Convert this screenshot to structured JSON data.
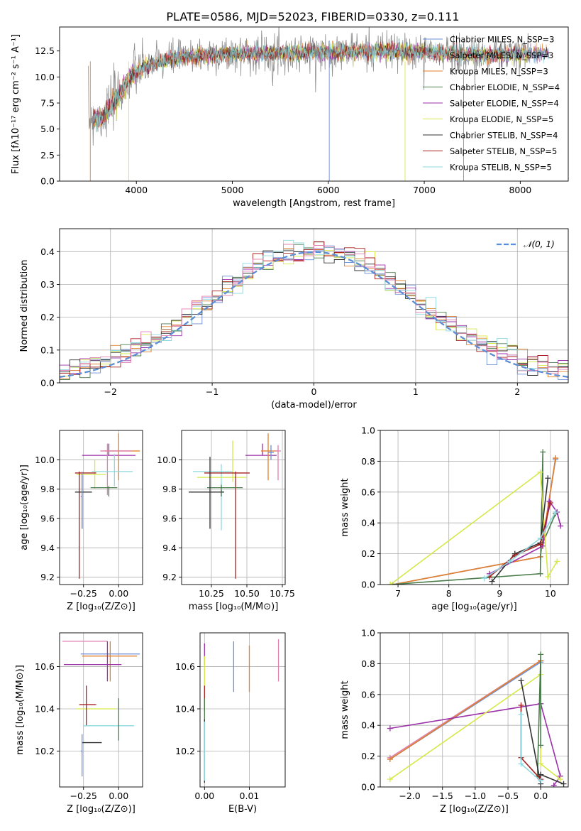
{
  "figure": {
    "title": "PLATE=0586, MJD=52023, FIBERID=0330, z=0.111"
  },
  "chart_data": [
    {
      "id": "spectrum",
      "type": "line",
      "xlabel": "wavelength [Angstrom, rest frame]",
      "ylabel": "Flux [fλ10⁻¹⁷ erg cm⁻² s⁻¹ A⁻¹]",
      "xlim": [
        3200,
        8500
      ],
      "ylim": [
        0,
        14.8
      ],
      "xticks": [
        4000,
        5000,
        6000,
        7000,
        8000
      ],
      "yticks": [
        0.0,
        2.5,
        5.0,
        7.5,
        10.0,
        12.5
      ],
      "grid": false,
      "legend_position": "right",
      "data_range": [
        3500,
        8300
      ],
      "continuum": {
        "x": [
          3500,
          3650,
          3800,
          3950,
          4100,
          4300,
          4600,
          5000,
          5500,
          6000,
          6500,
          7000,
          7500,
          8000,
          8300
        ],
        "y": [
          6.0,
          6.2,
          8.0,
          10.2,
          11.0,
          11.6,
          12.0,
          12.2,
          12.3,
          12.4,
          12.5,
          12.4,
          12.1,
          12.2,
          12.2
        ]
      },
      "series": [
        {
          "name": "Chabrier MILES, N_SSP=3",
          "color": "#6f8fd8"
        },
        {
          "name": "Salpeter MILES, N_SSP=3",
          "color": "#d98a8a"
        },
        {
          "name": "Kroupa MILES, N_SSP=3",
          "color": "#e0822f"
        },
        {
          "name": "Chabrier ELODIE, N_SSP=4",
          "color": "#4c7d4c"
        },
        {
          "name": "Salpeter ELODIE, N_SSP=4",
          "color": "#9b30a8"
        },
        {
          "name": "Kroupa ELODIE, N_SSP=5",
          "color": "#d6e84a"
        },
        {
          "name": "Chabrier STELIB, N_SSP=4",
          "color": "#333333"
        },
        {
          "name": "Salpeter STELIB, N_SSP=5",
          "color": "#a82020"
        },
        {
          "name": "Kroupa STELIB, N_SSP=5",
          "color": "#8fd8e0"
        }
      ]
    },
    {
      "id": "residuals",
      "type": "histogram",
      "xlabel": "(data-model)/error",
      "ylabel": "Normed distribution",
      "xlim": [
        -2.5,
        2.5
      ],
      "ylim": [
        0,
        0.47
      ],
      "xticks": [
        -2,
        -1,
        0,
        1,
        2
      ],
      "yticks": [
        0.0,
        0.1,
        0.2,
        0.3,
        0.4
      ],
      "grid": true,
      "legend_position": "top-right",
      "legend": "𝒩(0, 1)",
      "bin_width": 0.1,
      "overlay": {
        "type": "gaussian",
        "mean": 0,
        "sigma": 1,
        "color": "#5b8ed6"
      },
      "series_colors": [
        "#6f8fd8",
        "#e0822f",
        "#4c7d4c",
        "#9b30a8",
        "#d6e84a",
        "#333333",
        "#a82020",
        "#8fd8e0",
        "#e07fb0"
      ]
    },
    {
      "id": "age_vs_z",
      "type": "errorbar",
      "xlabel": "Z [log₁₀(Z/Z⊙)]",
      "ylabel": "age  [log₁₀(age/yr)]",
      "xlim": [
        -0.42,
        0.17
      ],
      "ylim": [
        9.15,
        10.2
      ],
      "xticks": [
        -0.25,
        0.0
      ],
      "xtick_labels": [
        "−0.25",
        "0.00"
      ],
      "yticks": [
        9.2,
        9.4,
        9.6,
        9.8,
        10.0
      ],
      "grid": true,
      "points": [
        {
          "x": -0.07,
          "xerr": [
            0.19,
            0.19
          ],
          "y": 10.03,
          "yerr": [
            0.0,
            0.08
          ],
          "color": "#9b30a8"
        },
        {
          "x": 0.0,
          "xerr": [
            0.1,
            0.15
          ],
          "y": 10.06,
          "yerr": [
            0.2,
            0.12
          ],
          "color": "#e0822f"
        },
        {
          "x": -0.08,
          "xerr": [
            0.05,
            0.17
          ],
          "y": 10.06,
          "yerr": [
            0.3,
            0.05
          ],
          "color": "#e07fb0"
        },
        {
          "x": -0.03,
          "xerr": [
            0.16,
            0.13
          ],
          "y": 9.92,
          "yerr": [
            0.1,
            0.12
          ],
          "color": "#8fd8e0"
        },
        {
          "x": -0.17,
          "xerr": [
            0.13,
            0.08
          ],
          "y": 9.9,
          "yerr": [
            0.1,
            0.1
          ],
          "color": "#d6e84a"
        },
        {
          "x": -0.28,
          "xerr": [
            0.03,
            0.12
          ],
          "y": 9.91,
          "yerr": [
            0.72,
            0.01
          ],
          "color": "#a82020"
        },
        {
          "x": -0.07,
          "xerr": [
            0.13,
            0.06
          ],
          "y": 9.81,
          "yerr": [
            0.06,
            0.01
          ],
          "color": "#4c7d4c"
        },
        {
          "x": -0.26,
          "xerr": [
            0.05,
            0.07
          ],
          "y": 9.78,
          "yerr": [
            0.25,
            0.12
          ],
          "color": "#333333"
        },
        {
          "x": -0.26,
          "xerr": [
            0.01,
            0.0
          ],
          "y": 9.75,
          "yerr": [
            0.22,
            0.17
          ],
          "color": "#6f8fd8"
        }
      ]
    },
    {
      "id": "age_vs_mass",
      "type": "errorbar",
      "xlabel": "mass [log₁₀(M/M⊙)]",
      "ylabel": "",
      "xlim": [
        10.04,
        10.77
      ],
      "ylim": [
        9.15,
        10.2
      ],
      "xticks": [
        10.25,
        10.5,
        10.75
      ],
      "yticks": [
        9.2,
        9.4,
        9.6,
        9.8,
        10.0
      ],
      "grid": true,
      "points": [
        {
          "x": 10.61,
          "xerr": [
            0.12,
            0.1
          ],
          "y": 10.03,
          "yerr": [
            0.0,
            0.08
          ],
          "color": "#9b30a8"
        },
        {
          "x": 10.65,
          "xerr": [
            0.05,
            0.07
          ],
          "y": 10.06,
          "yerr": [
            0.2,
            0.12
          ],
          "color": "#e0822f"
        },
        {
          "x": 10.72,
          "xerr": [
            0.02,
            0.02
          ],
          "y": 10.06,
          "yerr": [
            0.2,
            0.04
          ],
          "color": "#e07fb0"
        },
        {
          "x": 10.32,
          "xerr": [
            0.2,
            0.08
          ],
          "y": 9.92,
          "yerr": [
            0.4,
            0.05
          ],
          "color": "#8fd8e0"
        },
        {
          "x": 10.4,
          "xerr": [
            0.25,
            0.1
          ],
          "y": 9.88,
          "yerr": [
            0.03,
            0.25
          ],
          "color": "#d6e84a"
        },
        {
          "x": 10.42,
          "xerr": [
            0.22,
            0.1
          ],
          "y": 9.91,
          "yerr": [
            0.72,
            0.01
          ],
          "color": "#a82020"
        },
        {
          "x": 10.32,
          "xerr": [
            0.1,
            0.15
          ],
          "y": 9.81,
          "yerr": [
            0.06,
            0.02
          ],
          "color": "#4c7d4c"
        },
        {
          "x": 10.24,
          "xerr": [
            0.15,
            0.1
          ],
          "y": 9.78,
          "yerr": [
            0.25,
            0.24
          ],
          "color": "#333333"
        },
        {
          "x": 10.67,
          "xerr": [
            0.02,
            0.02
          ],
          "y": 10.05,
          "yerr": [
            0.05,
            0.05
          ],
          "color": "#6f8fd8"
        }
      ]
    },
    {
      "id": "massweight_vs_age",
      "type": "line",
      "xlabel": "age  [log₁₀(age/yr)]",
      "ylabel": "mass weight",
      "xlim": [
        6.65,
        10.35
      ],
      "ylim": [
        0.0,
        1.0
      ],
      "xticks": [
        7,
        8,
        9,
        10
      ],
      "yticks": [
        0.0,
        0.2,
        0.4,
        0.6,
        0.8,
        1.0
      ],
      "grid": true,
      "series": [
        {
          "color": "#6f8fd8",
          "x": [
            6.9,
            9.8,
            10.1
          ],
          "y": [
            0.0,
            0.18,
            0.81
          ]
        },
        {
          "color": "#d98a8a",
          "x": [
            6.9,
            9.8,
            10.1
          ],
          "y": [
            0.0,
            0.18,
            0.82
          ]
        },
        {
          "color": "#e0822f",
          "x": [
            6.9,
            9.8,
            10.1
          ],
          "y": [
            0.0,
            0.18,
            0.82
          ]
        },
        {
          "color": "#4c7d4c",
          "x": [
            6.85,
            9.8,
            9.85,
            9.85,
            10.1
          ],
          "y": [
            0.0,
            0.07,
            0.86,
            0.27,
            0.46
          ]
        },
        {
          "color": "#9b30a8",
          "x": [
            8.8,
            9.85,
            9.98,
            10.13,
            10.2
          ],
          "y": [
            0.07,
            0.25,
            0.54,
            0.47,
            0.38
          ]
        },
        {
          "color": "#d6e84a",
          "x": [
            6.85,
            9.8,
            9.95,
            10.13
          ],
          "y": [
            0.0,
            0.73,
            0.05,
            0.15
          ]
        },
        {
          "color": "#333333",
          "x": [
            8.85,
            9.3,
            9.8,
            9.95
          ],
          "y": [
            0.02,
            0.2,
            0.27,
            0.69
          ]
        },
        {
          "color": "#a82020",
          "x": [
            8.8,
            9.3,
            9.8,
            10.0
          ],
          "y": [
            0.05,
            0.19,
            0.26,
            0.53
          ]
        },
        {
          "color": "#8fd8e0",
          "x": [
            8.7,
            9.2,
            9.8,
            10.1
          ],
          "y": [
            0.04,
            0.15,
            0.3,
            0.47
          ]
        }
      ]
    },
    {
      "id": "mass_vs_z",
      "type": "errorbar",
      "xlabel": "Z [log₁₀(Z/Z⊙)]",
      "ylabel": "mass [log₁₀(M/M⊙)]",
      "xlim": [
        -0.42,
        0.17
      ],
      "ylim": [
        10.03,
        10.76
      ],
      "xticks": [
        -0.25,
        0.0
      ],
      "xtick_labels": [
        "−0.25",
        "0.00"
      ],
      "yticks": [
        10.2,
        10.4,
        10.6
      ],
      "grid": true,
      "points": [
        {
          "x": -0.08,
          "xerr": [
            0.32,
            0.0
          ],
          "y": 10.72,
          "yerr": [
            0.0,
            0.0
          ],
          "color": "#e07fb0"
        },
        {
          "x": -0.07,
          "xerr": [
            0.2,
            0.22
          ],
          "y": 10.66,
          "yerr": [
            0.0,
            0.0
          ],
          "color": "#6f8fd8"
        },
        {
          "x": -0.06,
          "xerr": [
            0.2,
            0.19
          ],
          "y": 10.65,
          "yerr": [
            0.12,
            0.07
          ],
          "color": "#e0822f"
        },
        {
          "x": -0.08,
          "xerr": [
            0.31,
            0.1
          ],
          "y": 10.61,
          "yerr": [
            0.08,
            0.11
          ],
          "color": "#9b30a8"
        },
        {
          "x": -0.22,
          "xerr": [
            0.08,
            0.2
          ],
          "y": 10.4,
          "yerr": [
            0.0,
            0.0
          ],
          "color": "#d6e84a"
        },
        {
          "x": -0.23,
          "xerr": [
            0.05,
            0.07
          ],
          "y": 10.42,
          "yerr": [
            0.1,
            0.09
          ],
          "color": "#a82020"
        },
        {
          "x": -0.03,
          "xerr": [
            0.22,
            0.14
          ],
          "y": 10.32,
          "yerr": [
            0.0,
            0.0
          ],
          "color": "#8fd8e0"
        },
        {
          "x": 0.0,
          "xerr": [
            0.0,
            0.0
          ],
          "y": 10.35,
          "yerr": [
            0.1,
            0.1
          ],
          "color": "#4c7d4c"
        },
        {
          "x": -0.2,
          "xerr": [
            0.06,
            0.08
          ],
          "y": 10.24,
          "yerr": [
            0.0,
            0.0
          ],
          "color": "#333333"
        },
        {
          "x": -0.26,
          "xerr": [
            0.01,
            0.0
          ],
          "y": 10.2,
          "yerr": [
            0.12,
            0.08
          ],
          "color": "#6f8fd8"
        }
      ]
    },
    {
      "id": "mass_vs_ebv",
      "type": "errorbar",
      "xlabel": "E(B-V)",
      "ylabel": "",
      "xlim": [
        -0.001,
        0.018
      ],
      "ylim": [
        10.03,
        10.76
      ],
      "xticks": [
        0.0,
        0.01
      ],
      "yticks": [
        10.2,
        10.4,
        10.6
      ],
      "grid": true,
      "points": [
        {
          "x": 0.0065,
          "xerr": [
            0,
            0
          ],
          "y": 10.6,
          "yerr": [
            0.12,
            0.12
          ],
          "color": "#6f8fd8"
        },
        {
          "x": 0.01,
          "xerr": [
            0,
            0
          ],
          "y": 10.59,
          "yerr": [
            0.11,
            0.11
          ],
          "color": "#e0822f"
        },
        {
          "x": 0.0165,
          "xerr": [
            0,
            0
          ],
          "y": 10.63,
          "yerr": [
            0.1,
            0.1
          ],
          "color": "#e07fb0"
        },
        {
          "x": 0.0,
          "xerr": [
            0,
            0
          ],
          "y": 10.66,
          "yerr": [
            0.05,
            0.05
          ],
          "color": "#9b30a8"
        },
        {
          "x": 0.0,
          "xerr": [
            0,
            0
          ],
          "y": 10.55,
          "yerr": [
            0.1,
            0.1
          ],
          "color": "#d6e84a"
        },
        {
          "x": 0.0,
          "xerr": [
            0,
            0
          ],
          "y": 10.45,
          "yerr": [
            0.06,
            0.06
          ],
          "color": "#a82020"
        },
        {
          "x": 0.0,
          "xerr": [
            0,
            0
          ],
          "y": 10.3,
          "yerr": [
            0.15,
            0.15
          ],
          "color": "#4c7d4c"
        },
        {
          "x": 0.0,
          "xerr": [
            0,
            0
          ],
          "y": 10.2,
          "yerr": [
            0.15,
            0.15
          ],
          "color": "#333333"
        },
        {
          "x": 0.0,
          "xerr": [
            0,
            0
          ],
          "y": 10.2,
          "yerr": [
            0.14,
            0.14
          ],
          "color": "#8fd8e0"
        }
      ]
    },
    {
      "id": "massweight_vs_z",
      "type": "line",
      "xlabel": "Z [log₁₀(Z/Z⊙)]",
      "ylabel": "mass weight",
      "xlim": [
        -2.45,
        0.42
      ],
      "ylim": [
        0.0,
        1.0
      ],
      "xticks": [
        -2.0,
        -1.5,
        -1.0,
        -0.5,
        0.0
      ],
      "xtick_labels": [
        "−2.0",
        "−1.5",
        "−1.0",
        "−0.5",
        "0.0"
      ],
      "yticks": [
        0.0,
        0.2,
        0.4,
        0.6,
        0.8,
        1.0
      ],
      "grid": true,
      "series": [
        {
          "color": "#6f8fd8",
          "x": [
            -2.3,
            0.0
          ],
          "y": [
            0.18,
            0.81
          ]
        },
        {
          "color": "#e07fb0",
          "x": [
            -2.3,
            0.0
          ],
          "y": [
            0.19,
            0.82
          ]
        },
        {
          "color": "#e0822f",
          "x": [
            -2.3,
            0.0
          ],
          "y": [
            0.18,
            0.82
          ]
        },
        {
          "color": "#9b30a8",
          "x": [
            -2.3,
            0.0,
            0.3,
            0.2
          ],
          "y": [
            0.38,
            0.54,
            0.07,
            0.01
          ]
        },
        {
          "color": "#d6e84a",
          "x": [
            -2.3,
            0.0,
            0.0,
            0.3
          ],
          "y": [
            0.05,
            0.73,
            0.15,
            0.05
          ]
        },
        {
          "color": "#4c7d4c",
          "x": [
            -0.05,
            0.0,
            0.0
          ],
          "y": [
            0.07,
            0.86,
            0.27
          ]
        },
        {
          "color": "#333333",
          "x": [
            -0.3,
            0.0,
            0.0,
            0.35
          ],
          "y": [
            0.69,
            0.02,
            0.08,
            0.02
          ]
        },
        {
          "color": "#a82020",
          "x": [
            -0.3,
            -0.3,
            0.0
          ],
          "y": [
            0.53,
            0.19,
            0.05
          ]
        },
        {
          "color": "#8fd8e0",
          "x": [
            -0.3,
            -0.3,
            0.0
          ],
          "y": [
            0.47,
            0.15,
            0.04
          ]
        }
      ]
    }
  ]
}
